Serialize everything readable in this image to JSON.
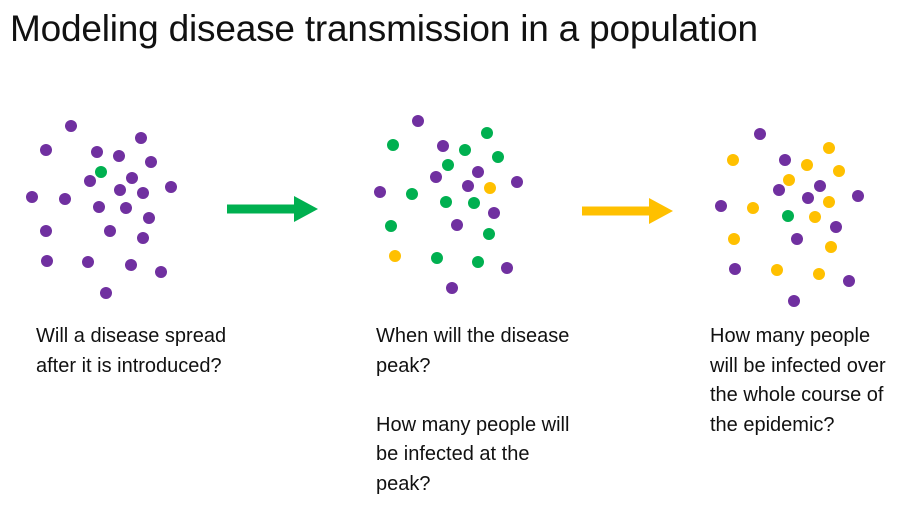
{
  "title": "Modeling disease transmission in a population",
  "colors": {
    "susceptible": "#7030A0",
    "infected": "#00B050",
    "recovered": "#FFC000",
    "arrow1": "#00B050",
    "arrow2": "#FFC000"
  },
  "captions": [
    [
      "Will a disease spread after it is introduced?"
    ],
    [
      "When will the disease peak?",
      "How many people will be infected at the peak?"
    ],
    [
      "How many people will be infected over the whole course of the epidemic?"
    ]
  ]
}
